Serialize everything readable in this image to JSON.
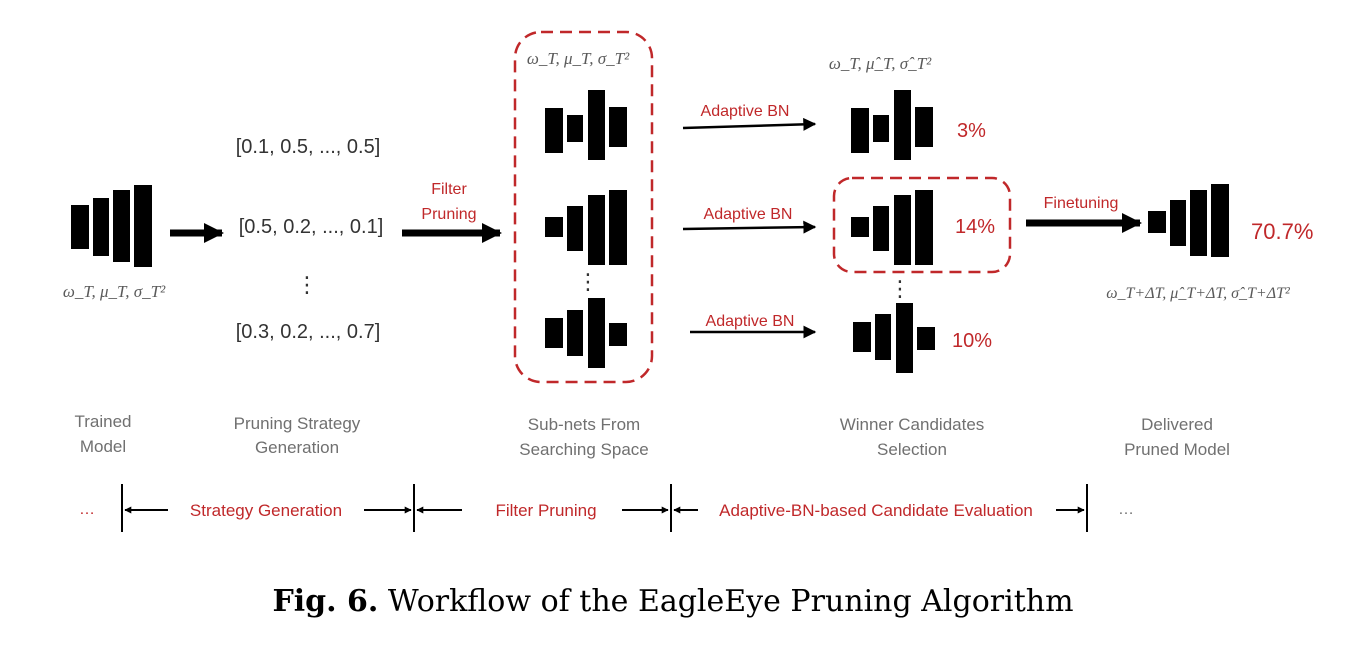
{
  "colors": {
    "accent": "#c0282a",
    "black": "#000000",
    "gray_text": "#707070",
    "formula_gray": "#5a5a5a"
  },
  "math": {
    "trained_params": "ω_T, μ_T, σ_T²",
    "subnet_params": "ω_T, μ_T, σ_T²",
    "winner_params": "ω_T, μ̂_T, σ̂_T²",
    "delivered_params": "ω_T+ΔT, μ̂_T+ΔT, σ̂_T+ΔT²"
  },
  "strategies": [
    "[0.1, 0.5, ..., 0.5]",
    "[0.5, 0.2, ..., 0.1]",
    "[0.3, 0.2, ..., 0.7]"
  ],
  "ellipsis_vertical": "⋮",
  "arrows": {
    "filter_pruning_1": "Filter",
    "filter_pruning_2": "Pruning",
    "adaptive_bn_1": "Adaptive BN",
    "adaptive_bn_2": "Adaptive BN",
    "adaptive_bn_3": "Adaptive BN",
    "finetuning": "Finetuning"
  },
  "accuracies": {
    "candidate_1": "3%",
    "candidate_2": "14%",
    "candidate_3": "10%",
    "delivered": "70.7%"
  },
  "stages": {
    "trained_1": "Trained",
    "trained_2": "Model",
    "strategy_1": "Pruning Strategy",
    "strategy_2": "Generation",
    "subnets_1": "Sub-nets From",
    "subnets_2": "Searching Space",
    "winner_1": "Winner Candidates",
    "winner_2": "Selection",
    "delivered_1": "Delivered",
    "delivered_2": "Pruned Model"
  },
  "phases": {
    "left_ellipsis": "…",
    "strategy_generation": "Strategy Generation",
    "filter_pruning": "Filter Pruning",
    "candidate_evaluation": "Adaptive-BN-based Candidate Evaluation",
    "right_ellipsis": "…"
  },
  "caption": {
    "label": "Fig. 6.",
    "text": "Workflow of the EagleEye Pruning Algorithm"
  }
}
